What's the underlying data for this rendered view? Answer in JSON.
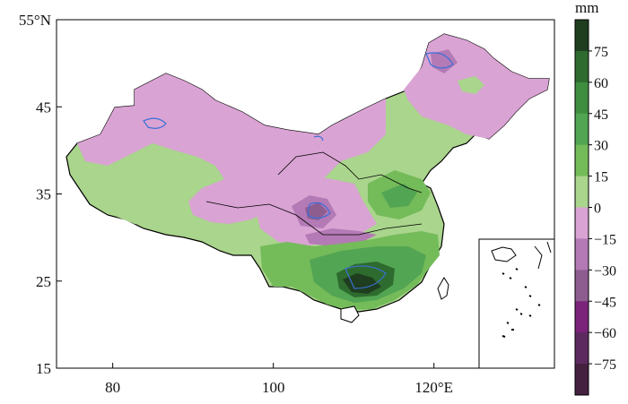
{
  "map": {
    "x_axis": {
      "ticks": [
        {
          "value": 80,
          "label": "80"
        },
        {
          "value": 100,
          "label": "100"
        },
        {
          "value": 120,
          "label": "120°E"
        }
      ],
      "range": [
        73,
        135
      ]
    },
    "y_axis": {
      "ticks": [
        {
          "value": 15,
          "label": "15"
        },
        {
          "value": 25,
          "label": "25"
        },
        {
          "value": 35,
          "label": "35"
        },
        {
          "value": 45,
          "label": "45"
        },
        {
          "value": 55,
          "label": "55°N"
        }
      ],
      "range": [
        15,
        55
      ]
    },
    "projection": "plate-carree",
    "inset": "South China Sea islands"
  },
  "colorbar": {
    "unit": "mm",
    "labels": [
      "75",
      "60",
      "45",
      "30",
      "15",
      "0",
      "−15",
      "−30",
      "−45",
      "−60",
      "−75"
    ],
    "colors": [
      "#1f3d1f",
      "#2e6b2e",
      "#3f8d3f",
      "#52a552",
      "#74bb5a",
      "#a9d58c",
      "#d9a3d3",
      "#b47ab5",
      "#8e5d8f",
      "#7b237a",
      "#5d2a5f",
      "#43213f"
    ]
  }
}
